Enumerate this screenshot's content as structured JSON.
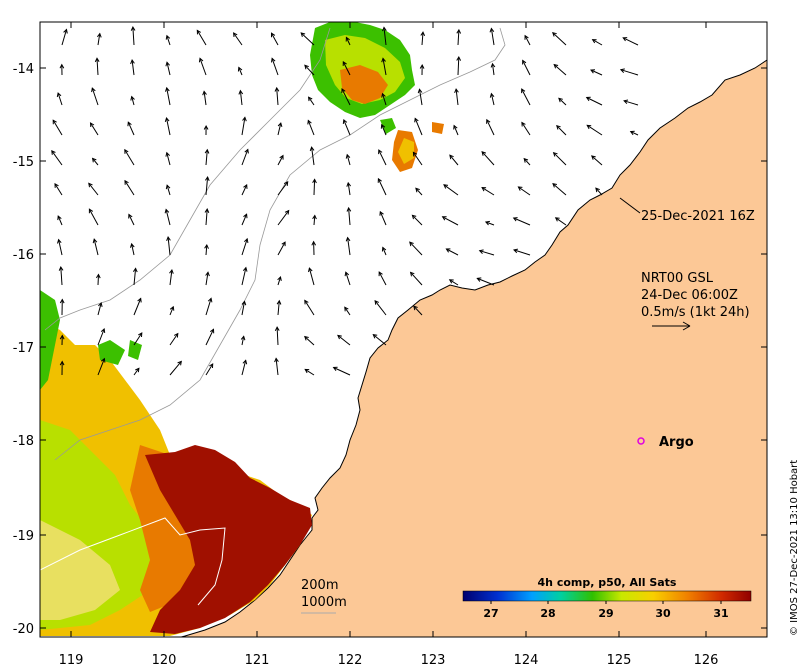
{
  "map": {
    "x_ticks": [
      "119",
      "120",
      "121",
      "122",
      "123",
      "124",
      "125",
      "126"
    ],
    "y_ticks": [
      "-14",
      "-15",
      "-16",
      "-17",
      "-18",
      "-19",
      "-20"
    ],
    "colors": {
      "land": "#fcc896",
      "hot": "#a01000",
      "warm": "#e87a00",
      "mid": "#f0c000",
      "cool": "#b8e000",
      "green": "#3cc000"
    }
  },
  "annotations": {
    "timestamp": "25-Dec-2021 16Z",
    "current_source": "NRT00 GSL",
    "current_time": "24-Dec 06:00Z",
    "current_scale": "0.5m/s (1kt 24h)",
    "argo_label": "Argo",
    "depth_200": "200m",
    "depth_1000": "1000m",
    "credit": "© IMOS 27-Dec-2021 13:10 Hobart"
  },
  "colorbar": {
    "title": "4h comp, p50, All Sats",
    "ticks": [
      "27",
      "28",
      "29",
      "30",
      "31"
    ]
  }
}
